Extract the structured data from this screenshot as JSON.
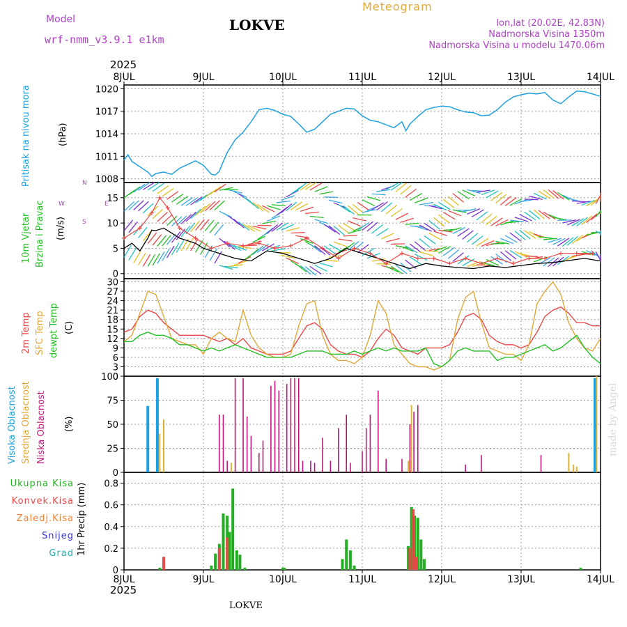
{
  "header": {
    "title": "LOKVE",
    "meteogram_label": "Meteogram",
    "model_label": "Model",
    "model_name": "wrf-nmm_v3.9.1 e1km",
    "lonlat": "lon,lat (20.02E, 42.83N)",
    "elevation": "Nadmorska Visina 1350m",
    "model_elevation": "Nadmorska Visina u modelu 1470.06m",
    "watermark": "made by Angel",
    "footer_station": "LOKVE"
  },
  "colors": {
    "pressure": "#1ea0e0",
    "temp2m": "#e84848",
    "sfc": "#e0a83a",
    "dewpt": "#22c022",
    "high_cloud": "#1ea0e0",
    "mid_cloud": "#e0b030",
    "low_cloud": "#c0187a",
    "total_precip": "#22b022",
    "convective": "#e84848",
    "freezing": "#f08030",
    "snow": "#3030d8",
    "hail": "#20b0b0",
    "wind_label": "#22c022",
    "purple_text": "#b040c8"
  },
  "chart_data": {
    "type": "meteogram",
    "x_axis": {
      "year_label": "2025",
      "ticks": [
        "8JUL",
        "9JUL",
        "10JUL",
        "11JUL",
        "12JUL",
        "13JUL",
        "14JUL"
      ],
      "range_days": [
        0,
        6
      ]
    },
    "panels": [
      {
        "id": "pressure",
        "type": "line",
        "ylabel_lines": [
          "Pritisak na nivou mora",
          "(hPa)"
        ],
        "yticks": [
          1008,
          1011,
          1014,
          1017,
          1020
        ],
        "ylim": [
          1007.5,
          1020.5
        ],
        "series": [
          {
            "name": "Pritisak",
            "x": [
              0,
              0.05,
              0.1,
              0.2,
              0.3,
              0.35,
              0.4,
              0.5,
              0.6,
              0.7,
              0.8,
              0.9,
              1.0,
              1.1,
              1.15,
              1.2,
              1.25,
              1.3,
              1.4,
              1.5,
              1.6,
              1.7,
              1.8,
              1.9,
              2.0,
              2.1,
              2.2,
              2.3,
              2.4,
              2.5,
              2.6,
              2.7,
              2.8,
              2.9,
              3.0,
              3.1,
              3.2,
              3.3,
              3.4,
              3.5,
              3.55,
              3.6,
              3.7,
              3.8,
              3.9,
              4.0,
              4.1,
              4.2,
              4.3,
              4.4,
              4.5,
              4.6,
              4.7,
              4.8,
              4.9,
              5.0,
              5.1,
              5.2,
              5.3,
              5.4,
              5.5,
              5.6,
              5.7,
              5.8,
              5.9,
              6.0
            ],
            "y": [
              1010.5,
              1011.2,
              1010.3,
              1009.6,
              1008.9,
              1008.3,
              1008.7,
              1008.9,
              1008.6,
              1009.4,
              1009.9,
              1010.4,
              1009.8,
              1008.6,
              1008.5,
              1009.0,
              1010.3,
              1011.5,
              1013.2,
              1014.2,
              1015.6,
              1017.2,
              1017.4,
              1017.1,
              1016.6,
              1016.3,
              1015.3,
              1014.2,
              1014.6,
              1015.6,
              1016.6,
              1017.0,
              1017.4,
              1017.3,
              1016.4,
              1015.8,
              1015.6,
              1015.2,
              1014.8,
              1015.6,
              1014.4,
              1015.3,
              1016.3,
              1017.2,
              1017.5,
              1017.7,
              1017.6,
              1017.2,
              1016.9,
              1016.8,
              1016.4,
              1016.5,
              1017.2,
              1018.2,
              1018.9,
              1019.2,
              1019.4,
              1019.3,
              1019.5,
              1018.5,
              1018.0,
              1018.9,
              1019.7,
              1019.6,
              1019.3,
              1019.0
            ]
          }
        ]
      },
      {
        "id": "wind",
        "type": "line+barbs",
        "ylabel_lines": [
          "10m Vjetar",
          "Brzina i Pravac",
          "(m/s)"
        ],
        "direction_key": [
          "N",
          "W",
          "E",
          "S"
        ],
        "yticks": [
          0,
          5,
          10,
          15
        ],
        "ylim": [
          -1,
          18
        ],
        "series": [
          {
            "name": "Brzina",
            "x": [
              0,
              0.1,
              0.2,
              0.3,
              0.35,
              0.4,
              0.5,
              0.6,
              0.7,
              0.8,
              0.9,
              1.0,
              1.2,
              1.4,
              1.6,
              1.8,
              2.0,
              2.2,
              2.4,
              2.6,
              2.8,
              3.0,
              3.2,
              3.4,
              3.6,
              3.8,
              4.0,
              4.2,
              4.4,
              4.6,
              4.8,
              5.0,
              5.2,
              5.4,
              5.6,
              5.8,
              6.0
            ],
            "y": [
              5,
              6,
              4.5,
              7,
              8.6,
              8.5,
              9,
              8,
              7,
              6.5,
              6,
              5,
              4,
              3,
              2.5,
              4.5,
              4,
              3,
              2,
              3,
              5,
              4,
              3,
              2,
              1,
              2,
              1.5,
              1.2,
              1.0,
              1.5,
              1.2,
              1.6,
              2.0,
              2.2,
              2.6,
              3.0,
              2.5
            ]
          },
          {
            "name": "Udari",
            "x": [
              0,
              0.2,
              0.35,
              0.45,
              0.55,
              0.7,
              0.9,
              1.1,
              1.3,
              1.5,
              1.7,
              1.9,
              2.1,
              2.3,
              2.5,
              2.7,
              2.9,
              3.1,
              3.3,
              3.5,
              3.7,
              3.9,
              4.1,
              4.3,
              4.5,
              4.7,
              4.9,
              5.1,
              5.3,
              5.5,
              5.7,
              5.9
            ],
            "y": [
              7,
              9,
              12,
              15,
              13,
              9,
              7,
              5,
              6,
              5.5,
              6,
              5,
              5.5,
              7,
              5,
              3,
              5,
              4,
              2,
              4,
              3,
              3,
              2,
              3,
              2,
              3,
              2,
              3,
              3,
              4,
              4,
              4
            ]
          }
        ]
      },
      {
        "id": "temperature",
        "type": "line",
        "ylabel_lines": [
          "2m Temp",
          "SFC Temp",
          "dewpt Temp",
          "(C)"
        ],
        "yticks": [
          0,
          3,
          6,
          9,
          12,
          15,
          18,
          21,
          24,
          27,
          30
        ],
        "ylim": [
          0,
          31
        ],
        "series": [
          {
            "name": "2m Temp",
            "x": [
              0,
              0.1,
              0.2,
              0.3,
              0.4,
              0.5,
              0.6,
              0.7,
              0.8,
              0.9,
              1.0,
              1.1,
              1.2,
              1.3,
              1.4,
              1.5,
              1.6,
              1.7,
              1.8,
              1.9,
              2.0,
              2.1,
              2.2,
              2.3,
              2.4,
              2.5,
              2.6,
              2.7,
              2.8,
              2.9,
              3.0,
              3.1,
              3.2,
              3.3,
              3.4,
              3.5,
              3.6,
              3.7,
              3.8,
              3.9,
              4.0,
              4.1,
              4.2,
              4.3,
              4.4,
              4.5,
              4.6,
              4.7,
              4.8,
              4.9,
              5.0,
              5.1,
              5.2,
              5.3,
              5.4,
              5.5,
              5.6,
              5.7,
              5.8,
              5.9,
              6.0
            ],
            "y": [
              14,
              15,
              19,
              21,
              20,
              17,
              15,
              13,
              13,
              13,
              13,
              12,
              11,
              12,
              10,
              12,
              9,
              8,
              7,
              7,
              7,
              8,
              12,
              16,
              17,
              15,
              10,
              8,
              7,
              7,
              6,
              8,
              12,
              15,
              13,
              9,
              8,
              7,
              9,
              9,
              9,
              10,
              14,
              19,
              20,
              18,
              13,
              11,
              10,
              10,
              9,
              10,
              14,
              19,
              21,
              22,
              20,
              17,
              17,
              16,
              16
            ]
          },
          {
            "name": "SFC Temp",
            "x": [
              0,
              0.1,
              0.2,
              0.3,
              0.4,
              0.5,
              0.6,
              0.7,
              0.8,
              0.9,
              1.0,
              1.1,
              1.2,
              1.3,
              1.4,
              1.5,
              1.6,
              1.7,
              1.8,
              1.9,
              2.0,
              2.1,
              2.2,
              2.3,
              2.4,
              2.5,
              2.6,
              2.7,
              2.8,
              2.9,
              3.0,
              3.1,
              3.2,
              3.3,
              3.4,
              3.5,
              3.6,
              3.7,
              3.8,
              3.9,
              4.0,
              4.1,
              4.2,
              4.3,
              4.4,
              4.5,
              4.6,
              4.7,
              4.8,
              4.9,
              5.0,
              5.1,
              5.2,
              5.3,
              5.4,
              5.5,
              5.6,
              5.7,
              5.8,
              5.9,
              6.0
            ],
            "y": [
              11,
              13,
              20,
              27,
              26,
              19,
              12,
              11,
              10,
              10,
              7,
              12,
              14,
              12,
              11,
              21,
              13,
              9,
              7,
              6,
              6,
              7,
              16,
              23,
              24,
              13,
              7,
              5,
              5,
              4,
              6,
              13,
              24,
              20,
              10,
              7,
              4,
              3,
              3,
              2,
              3,
              5,
              18,
              25,
              27,
              17,
              9,
              8,
              7,
              7,
              5,
              10,
              23,
              27,
              30,
              26,
              17,
              12,
              9,
              8,
              12
            ]
          },
          {
            "name": "dewpt Temp",
            "x": [
              0,
              0.1,
              0.2,
              0.3,
              0.4,
              0.5,
              0.6,
              0.7,
              0.8,
              0.9,
              1.0,
              1.1,
              1.2,
              1.3,
              1.4,
              1.5,
              1.6,
              1.7,
              1.8,
              1.9,
              2.0,
              2.1,
              2.2,
              2.3,
              2.4,
              2.5,
              2.6,
              2.7,
              2.8,
              2.9,
              3.0,
              3.1,
              3.2,
              3.3,
              3.4,
              3.5,
              3.6,
              3.7,
              3.8,
              3.9,
              4.0,
              4.1,
              4.2,
              4.3,
              4.4,
              4.5,
              4.6,
              4.7,
              4.8,
              4.9,
              5.0,
              5.1,
              5.2,
              5.3,
              5.4,
              5.5,
              5.6,
              5.7,
              5.8,
              5.9,
              6.0
            ],
            "y": [
              11,
              11,
              13,
              14,
              13,
              13,
              12,
              10,
              10,
              9,
              8,
              9,
              8,
              9,
              10,
              9,
              8,
              7,
              6,
              6,
              6,
              6,
              7,
              8,
              8,
              8,
              7,
              7,
              7,
              8,
              7,
              8,
              9,
              8,
              9,
              8,
              8,
              8,
              9,
              4,
              3,
              5,
              8,
              9,
              8,
              8,
              8,
              5,
              6,
              6,
              7,
              8,
              9,
              10,
              8,
              9,
              11,
              13,
              9,
              6,
              4
            ]
          }
        ]
      },
      {
        "id": "cloud",
        "type": "bar",
        "ylabel_lines": [
          "Visoka Oblacnost",
          "Srednja Oblacnost",
          "Niska Oblacnost",
          "(%)"
        ],
        "yticks": [
          0,
          25,
          50,
          75,
          100
        ],
        "ylim": [
          0,
          100
        ],
        "series": [
          {
            "name": "Visoka Oblacnost",
            "x": [
              0.3,
              0.42,
              5.93
            ],
            "y": [
              69,
              98,
              98
            ]
          },
          {
            "name": "Srednja Oblacnost",
            "x": [
              0.45,
              0.5,
              1.35,
              3.58,
              3.62,
              5.6,
              5.66,
              5.7,
              5.95
            ],
            "y": [
              40,
              55,
              10,
              12,
              70,
              20,
              8,
              6,
              100
            ]
          },
          {
            "name": "Niska Oblacnost",
            "x": [
              1.2,
              1.25,
              1.3,
              1.4,
              1.5,
              1.55,
              1.6,
              1.7,
              1.75,
              1.85,
              1.9,
              1.95,
              2.05,
              2.1,
              2.15,
              2.2,
              2.25,
              2.35,
              2.4,
              2.5,
              2.6,
              2.7,
              2.8,
              2.85,
              3.0,
              3.05,
              3.1,
              3.2,
              3.3,
              3.5,
              3.6,
              3.65,
              3.7,
              4.3,
              4.5,
              5.25
            ],
            "y": [
              60,
              60,
              12,
              98,
              98,
              58,
              38,
              20,
              33,
              90,
              95,
              85,
              92,
              98,
              98,
              98,
              12,
              12,
              10,
              36,
              12,
              46,
              60,
              10,
              22,
              46,
              60,
              85,
              14,
              14,
              50,
              63,
              70,
              8,
              18,
              18
            ]
          }
        ]
      },
      {
        "id": "precip",
        "type": "bar",
        "ylabel_lines": [
          "1hr Precip (mm)"
        ],
        "legend": [
          "Ukupna Kisa",
          "Konvek.Kisa",
          "Zaledj.Kisa",
          "Snijeg",
          "Grad"
        ],
        "yticks": [
          0,
          0.2,
          0.4,
          0.6,
          0.8
        ],
        "ylim": [
          0,
          0.9
        ],
        "series": [
          {
            "name": "Ukupna Kisa",
            "x": [
              0.45,
              0.5,
              1.1,
              1.15,
              1.2,
              1.25,
              1.3,
              1.33,
              1.37,
              1.42,
              1.46,
              1.52,
              2.0,
              2.02,
              2.75,
              2.8,
              2.85,
              2.9,
              3.58,
              3.62,
              3.66,
              3.7,
              3.74,
              3.78,
              5.75
            ],
            "y": [
              0.02,
              0.12,
              0.04,
              0.15,
              0.24,
              0.52,
              0.5,
              0.35,
              0.75,
              0.18,
              0.14,
              0.02,
              0.02,
              0.02,
              0.1,
              0.28,
              0.18,
              0.04,
              0.22,
              0.58,
              0.5,
              0.48,
              0.28,
              0.1,
              0.02
            ]
          },
          {
            "name": "Konvek.Kisa",
            "x": [
              0.5,
              1.2,
              1.3,
              3.6,
              3.64,
              3.68
            ],
            "y": [
              0.12,
              0.2,
              0.3,
              0.2,
              0.56,
              0.12
            ]
          }
        ]
      }
    ]
  }
}
